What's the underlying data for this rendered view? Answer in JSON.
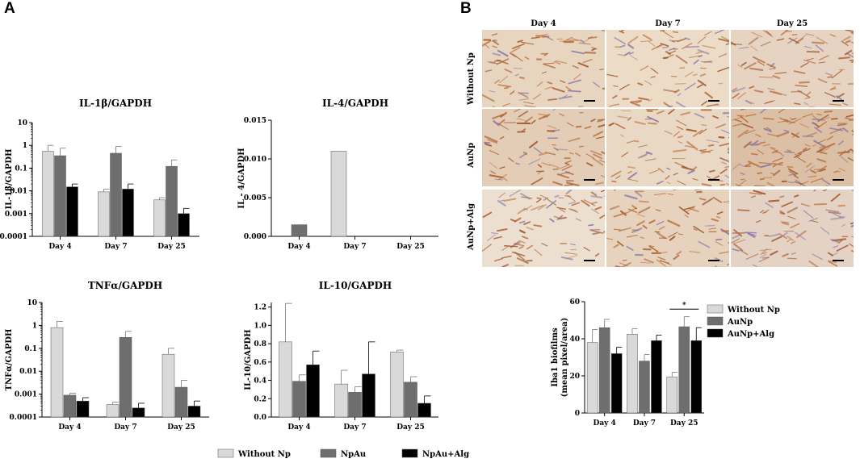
{
  "panels": {
    "a": "A",
    "b": "B"
  },
  "colors": {
    "without_np": "#d9d9d9",
    "npau": "#6e6e6e",
    "npau_alg": "#000000"
  },
  "charts": [
    {
      "id": "il1b",
      "type": "bar",
      "title": "IL-1β/GAPDH",
      "ylabel": "IL-1β/GAPDH",
      "scale": "log",
      "ylim": [
        0.0001,
        10
      ],
      "yticks": [
        0.0001,
        0.001,
        0.01,
        0.1,
        1,
        10
      ],
      "yticklabels": [
        "0.0001",
        "0.001",
        "0.01",
        "0.1",
        "1",
        "10"
      ],
      "categories": [
        "Day 4",
        "Day 7",
        "Day 25"
      ],
      "series": [
        {
          "values": [
            0.55,
            0.009,
            0.004
          ],
          "err": [
            1.0,
            0.012,
            0.005
          ]
        },
        {
          "values": [
            0.35,
            0.45,
            0.12
          ],
          "err": [
            0.75,
            0.9,
            0.23
          ]
        },
        {
          "values": [
            0.015,
            0.012,
            0.001
          ],
          "err": [
            0.02,
            0.02,
            0.0017
          ]
        }
      ]
    },
    {
      "id": "il4",
      "type": "bar",
      "title": "IL-4/GAPDH",
      "ylabel": "IL - 4/GAPDH",
      "scale": "linear",
      "ylim": [
        0,
        0.015
      ],
      "yticks": [
        0,
        0.005,
        0.01,
        0.015
      ],
      "yticklabels": [
        "0.000",
        "0.005",
        "0.010",
        "0.015"
      ],
      "categories": [
        "Day 4",
        "Day 7",
        "Day 25"
      ],
      "series": [
        {
          "values": [
            0,
            0.011,
            0
          ],
          "err": [
            null,
            null,
            null
          ]
        },
        {
          "values": [
            0.0015,
            0,
            0
          ],
          "err": [
            null,
            null,
            null
          ]
        },
        {
          "values": [
            0,
            0,
            0
          ],
          "err": [
            null,
            null,
            null
          ]
        }
      ]
    },
    {
      "id": "tnfa",
      "type": "bar",
      "title": "TNFα/GAPDH",
      "ylabel": "TNFα/GAPDH",
      "scale": "log",
      "ylim": [
        0.0001,
        10
      ],
      "yticks": [
        0.0001,
        0.001,
        0.01,
        0.1,
        1,
        10
      ],
      "yticklabels": [
        "0.0001",
        "0.001",
        "0.01",
        "0.1",
        "1",
        "10"
      ],
      "categories": [
        "Day 4",
        "Day 7",
        "Day 25"
      ],
      "series": [
        {
          "values": [
            0.8,
            0.00035,
            0.055
          ],
          "err": [
            1.5,
            0.00045,
            0.1
          ]
        },
        {
          "values": [
            0.0009,
            0.3,
            0.002
          ],
          "err": [
            0.0011,
            0.55,
            0.004
          ]
        },
        {
          "values": [
            0.0005,
            0.00025,
            0.0003
          ],
          "err": [
            0.0007,
            0.0004,
            0.0005
          ]
        }
      ]
    },
    {
      "id": "il10",
      "type": "bar",
      "title": "IL-10/GAPDH",
      "ylabel": "IL-10/GAPDH",
      "scale": "linear",
      "ylim": [
        0,
        1.25
      ],
      "yticks": [
        0,
        0.2,
        0.4,
        0.6,
        0.8,
        1.0,
        1.2
      ],
      "yticklabels": [
        "0.0",
        "0.2",
        "0.4",
        "0.6",
        "0.8",
        "1.0",
        "1.2"
      ],
      "categories": [
        "Day 4",
        "Day 7",
        "Day 25"
      ],
      "series": [
        {
          "values": [
            0.82,
            0.36,
            0.71
          ],
          "err": [
            1.24,
            0.51,
            0.73
          ]
        },
        {
          "values": [
            0.39,
            0.27,
            0.38
          ],
          "err": [
            0.46,
            0.33,
            0.44
          ]
        },
        {
          "values": [
            0.57,
            0.47,
            0.15
          ],
          "err": [
            0.72,
            0.82,
            0.23
          ]
        }
      ]
    },
    {
      "id": "iba1",
      "type": "bar",
      "title": "",
      "ylabel": "Iba1 biofilms (mean pixel/area)",
      "ylabel_lines": [
        "Iba1 biofilms",
        "(mean pixel/area)"
      ],
      "scale": "linear",
      "ylim": [
        0,
        60
      ],
      "yticks": [
        0,
        20,
        40,
        60
      ],
      "yticklabels": [
        "0",
        "20",
        "40",
        "60"
      ],
      "categories": [
        "Day 4",
        "Day 7",
        "Day 25"
      ],
      "series": [
        {
          "values": [
            38,
            42.5,
            19.5
          ],
          "err": [
            45,
            45.5,
            22
          ]
        },
        {
          "values": [
            46,
            28,
            46.5
          ],
          "err": [
            50.5,
            31.5,
            52
          ]
        },
        {
          "values": [
            32,
            39,
            39
          ],
          "err": [
            35.5,
            42,
            46
          ]
        }
      ],
      "annotation": "*"
    }
  ],
  "legend_a": [
    "Without Np",
    "NpAu",
    "NpAu+Alg"
  ],
  "legend_b": [
    "Without Np",
    "AuNp",
    "AuNp+Alg"
  ],
  "micrographs": {
    "columns": [
      "Day 4",
      "Day 7",
      "Day 25"
    ],
    "rows": [
      "Without Np",
      "AuNp",
      "AuNp+Alg"
    ]
  }
}
